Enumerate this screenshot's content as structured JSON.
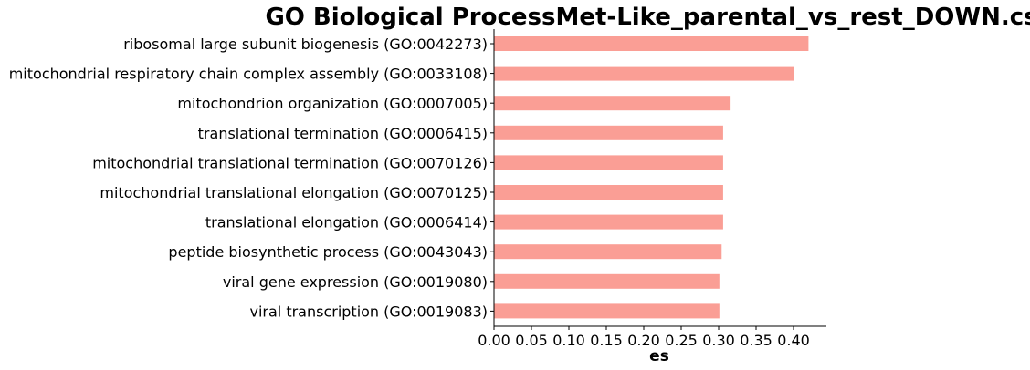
{
  "chart_data": {
    "type": "bar",
    "orientation": "horizontal",
    "title": "GO Biological ProcessMet-Like_parental_vs_rest_DOWN.csv",
    "xlabel": "es",
    "ylabel": "",
    "xlim": [
      0,
      0.44
    ],
    "grid": false,
    "bar_color": "#fa9e95",
    "categories": [
      "ribosomal large subunit biogenesis (GO:0042273)",
      "mitochondrial respiratory chain complex assembly (GO:0033108)",
      "mitochondrion organization (GO:0007005)",
      "translational termination (GO:0006415)",
      "mitochondrial translational termination (GO:0070126)",
      "mitochondrial translational elongation (GO:0070125)",
      "translational elongation (GO:0006414)",
      "peptide biosynthetic process (GO:0043043)",
      "viral gene expression (GO:0019080)",
      "viral transcription (GO:0019083)"
    ],
    "values": [
      0.42,
      0.4,
      0.316,
      0.306,
      0.306,
      0.306,
      0.306,
      0.304,
      0.301,
      0.301
    ],
    "x_ticks": [
      0.0,
      0.05,
      0.1,
      0.15,
      0.2,
      0.25,
      0.3,
      0.35,
      0.4
    ],
    "x_tick_labels": [
      "0.00",
      "0.05",
      "0.10",
      "0.15",
      "0.20",
      "0.25",
      "0.30",
      "0.35",
      "0.40"
    ]
  }
}
